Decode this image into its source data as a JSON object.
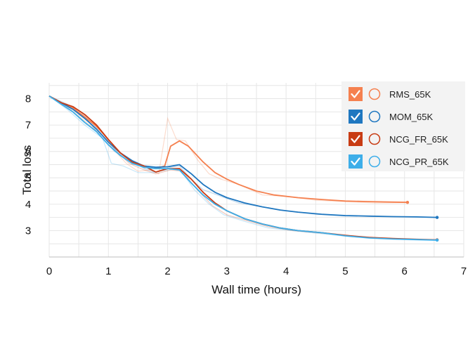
{
  "chart_data": {
    "type": "line",
    "title": "",
    "xlabel": "Wall time (hours)",
    "ylabel": "Total loss",
    "xlim": [
      0,
      7
    ],
    "ylim": [
      2.0,
      8.6
    ],
    "xticks": [
      0,
      1,
      2,
      3,
      4,
      5,
      6,
      7
    ],
    "yticks": [
      3,
      4,
      5,
      6,
      7,
      8
    ],
    "grid": true,
    "legend_position": "top-right",
    "series": [
      {
        "name": "RMS_65K",
        "color": "#f5804f",
        "smoothed": [
          [
            0,
            8.1
          ],
          [
            0.2,
            7.85
          ],
          [
            0.4,
            7.65
          ],
          [
            0.6,
            7.3
          ],
          [
            0.8,
            6.95
          ],
          [
            1.0,
            6.45
          ],
          [
            1.2,
            5.95
          ],
          [
            1.4,
            5.6
          ],
          [
            1.6,
            5.4
          ],
          [
            1.8,
            5.35
          ],
          [
            1.95,
            5.45
          ],
          [
            2.05,
            6.2
          ],
          [
            2.2,
            6.4
          ],
          [
            2.35,
            6.2
          ],
          [
            2.6,
            5.6
          ],
          [
            2.8,
            5.2
          ],
          [
            3.0,
            4.95
          ],
          [
            3.2,
            4.75
          ],
          [
            3.5,
            4.5
          ],
          [
            3.8,
            4.35
          ],
          [
            4.2,
            4.25
          ],
          [
            4.6,
            4.18
          ],
          [
            5.0,
            4.12
          ],
          [
            5.4,
            4.1
          ],
          [
            5.8,
            4.08
          ],
          [
            6.05,
            4.07
          ]
        ],
        "raw": [
          [
            0,
            8.1
          ],
          [
            0.3,
            7.7
          ],
          [
            0.6,
            7.15
          ],
          [
            0.9,
            6.6
          ],
          [
            1.1,
            6.05
          ],
          [
            1.3,
            5.55
          ],
          [
            1.5,
            5.25
          ],
          [
            1.7,
            5.3
          ],
          [
            1.85,
            5.15
          ],
          [
            2.0,
            7.25
          ],
          [
            2.15,
            6.45
          ],
          [
            2.3,
            6.4
          ],
          [
            2.5,
            5.7
          ],
          [
            2.7,
            5.15
          ],
          [
            2.9,
            4.95
          ],
          [
            3.2,
            4.75
          ],
          [
            3.6,
            4.35
          ],
          [
            4.0,
            4.3
          ],
          [
            4.5,
            4.15
          ],
          [
            5.0,
            4.1
          ],
          [
            5.5,
            4.05
          ],
          [
            6.05,
            4.06
          ]
        ]
      },
      {
        "name": "MOM_65K",
        "color": "#1f77c0",
        "smoothed": [
          [
            0,
            8.1
          ],
          [
            0.2,
            7.85
          ],
          [
            0.4,
            7.6
          ],
          [
            0.6,
            7.25
          ],
          [
            0.8,
            6.85
          ],
          [
            1.0,
            6.35
          ],
          [
            1.2,
            5.95
          ],
          [
            1.4,
            5.65
          ],
          [
            1.6,
            5.45
          ],
          [
            1.8,
            5.4
          ],
          [
            2.0,
            5.42
          ],
          [
            2.2,
            5.5
          ],
          [
            2.4,
            5.15
          ],
          [
            2.6,
            4.75
          ],
          [
            2.8,
            4.45
          ],
          [
            3.0,
            4.25
          ],
          [
            3.3,
            4.05
          ],
          [
            3.6,
            3.9
          ],
          [
            3.9,
            3.78
          ],
          [
            4.2,
            3.7
          ],
          [
            4.6,
            3.62
          ],
          [
            5.0,
            3.57
          ],
          [
            5.4,
            3.55
          ],
          [
            5.8,
            3.53
          ],
          [
            6.2,
            3.52
          ],
          [
            6.55,
            3.5
          ]
        ],
        "raw": [
          [
            0,
            8.1
          ],
          [
            0.3,
            7.8
          ],
          [
            0.6,
            7.3
          ],
          [
            0.9,
            6.5
          ],
          [
            1.1,
            6.0
          ],
          [
            1.35,
            5.7
          ],
          [
            1.6,
            5.35
          ],
          [
            1.8,
            5.2
          ],
          [
            2.05,
            5.4
          ],
          [
            2.2,
            5.45
          ],
          [
            2.4,
            4.95
          ],
          [
            2.6,
            4.55
          ],
          [
            2.9,
            4.3
          ],
          [
            3.2,
            4.05
          ],
          [
            3.6,
            3.9
          ],
          [
            4.0,
            3.75
          ],
          [
            4.5,
            3.62
          ],
          [
            5.0,
            3.55
          ],
          [
            5.5,
            3.55
          ],
          [
            6.0,
            3.52
          ],
          [
            6.55,
            3.5
          ]
        ]
      },
      {
        "name": "NCG_FR_65K",
        "color": "#c83c14",
        "smoothed": [
          [
            0,
            8.1
          ],
          [
            0.2,
            7.85
          ],
          [
            0.4,
            7.7
          ],
          [
            0.6,
            7.4
          ],
          [
            0.8,
            7.0
          ],
          [
            1.0,
            6.45
          ],
          [
            1.2,
            5.95
          ],
          [
            1.4,
            5.6
          ],
          [
            1.6,
            5.45
          ],
          [
            1.8,
            5.22
          ],
          [
            2.0,
            5.35
          ],
          [
            2.2,
            5.35
          ],
          [
            2.4,
            4.95
          ],
          [
            2.6,
            4.45
          ],
          [
            2.8,
            4.05
          ],
          [
            3.0,
            3.75
          ],
          [
            3.3,
            3.45
          ],
          [
            3.6,
            3.25
          ],
          [
            3.9,
            3.1
          ],
          [
            4.2,
            3.0
          ],
          [
            4.6,
            2.92
          ],
          [
            5.0,
            2.82
          ],
          [
            5.4,
            2.74
          ],
          [
            5.8,
            2.7
          ],
          [
            6.2,
            2.67
          ],
          [
            6.55,
            2.65
          ]
        ],
        "raw": [
          [
            0,
            8.1
          ],
          [
            0.3,
            7.75
          ],
          [
            0.6,
            7.35
          ],
          [
            0.9,
            6.7
          ],
          [
            1.1,
            6.1
          ],
          [
            1.35,
            5.55
          ],
          [
            1.6,
            5.3
          ],
          [
            1.8,
            5.15
          ],
          [
            2.05,
            5.3
          ],
          [
            2.25,
            5.25
          ],
          [
            2.5,
            4.55
          ],
          [
            2.75,
            3.95
          ],
          [
            3.0,
            3.6
          ],
          [
            3.3,
            3.4
          ],
          [
            3.7,
            3.15
          ],
          [
            4.1,
            3.0
          ],
          [
            4.6,
            2.9
          ],
          [
            5.1,
            2.8
          ],
          [
            5.6,
            2.72
          ],
          [
            6.1,
            2.67
          ],
          [
            6.55,
            2.64
          ]
        ]
      },
      {
        "name": "NCG_PR_65K",
        "color": "#3daee9",
        "smoothed": [
          [
            0,
            8.1
          ],
          [
            0.2,
            7.8
          ],
          [
            0.4,
            7.5
          ],
          [
            0.6,
            7.1
          ],
          [
            0.8,
            6.75
          ],
          [
            1.0,
            6.25
          ],
          [
            1.2,
            5.85
          ],
          [
            1.4,
            5.55
          ],
          [
            1.6,
            5.4
          ],
          [
            1.8,
            5.35
          ],
          [
            2.0,
            5.35
          ],
          [
            2.2,
            5.3
          ],
          [
            2.4,
            4.8
          ],
          [
            2.6,
            4.35
          ],
          [
            2.8,
            4.0
          ],
          [
            3.0,
            3.75
          ],
          [
            3.3,
            3.45
          ],
          [
            3.6,
            3.25
          ],
          [
            3.9,
            3.1
          ],
          [
            4.2,
            3.0
          ],
          [
            4.6,
            2.92
          ],
          [
            5.0,
            2.8
          ],
          [
            5.4,
            2.72
          ],
          [
            5.8,
            2.68
          ],
          [
            6.2,
            2.66
          ],
          [
            6.55,
            2.64
          ]
        ],
        "raw": [
          [
            0,
            8.1
          ],
          [
            0.3,
            7.6
          ],
          [
            0.6,
            7.0
          ],
          [
            0.9,
            6.5
          ],
          [
            1.05,
            5.55
          ],
          [
            1.25,
            5.45
          ],
          [
            1.5,
            5.2
          ],
          [
            1.75,
            5.2
          ],
          [
            2.0,
            5.3
          ],
          [
            2.2,
            5.35
          ],
          [
            2.45,
            4.55
          ],
          [
            2.7,
            4.0
          ],
          [
            2.95,
            3.6
          ],
          [
            3.3,
            3.35
          ],
          [
            3.7,
            3.1
          ],
          [
            4.1,
            3.0
          ],
          [
            4.6,
            2.88
          ],
          [
            5.1,
            2.77
          ],
          [
            5.6,
            2.7
          ],
          [
            6.1,
            2.65
          ],
          [
            6.55,
            2.63
          ]
        ]
      }
    ]
  }
}
